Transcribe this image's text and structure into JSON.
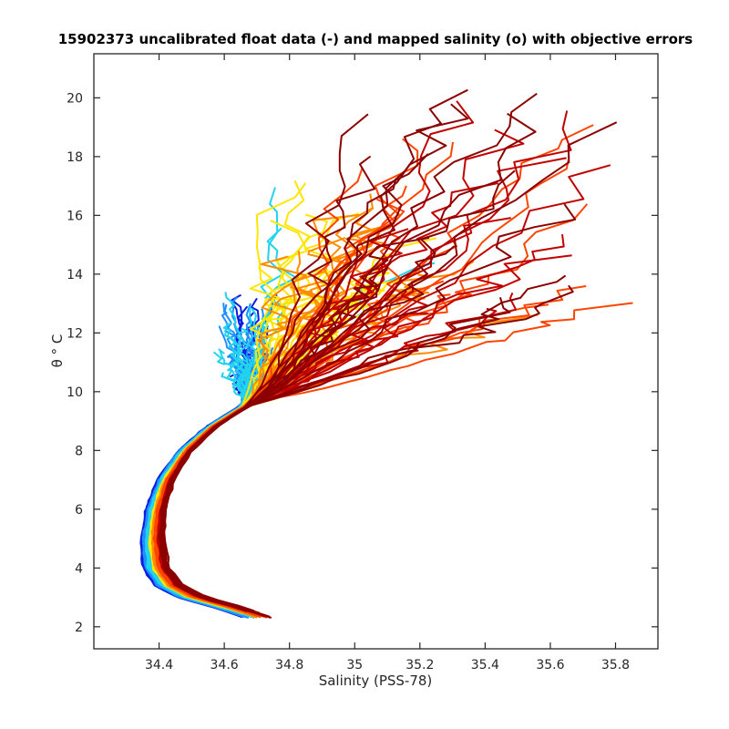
{
  "chart_data": {
    "type": "line",
    "title": "15902373 uncalibrated float data (-) and mapped salinity (o) with objective errors",
    "xlabel": "Salinity (PSS-78)",
    "ylabel": "θ ° C",
    "xlim": [
      34.2,
      35.93
    ],
    "ylim": [
      1.25,
      21.5
    ],
    "xticks": [
      34.4,
      34.6,
      34.8,
      35,
      35.2,
      35.4,
      35.6,
      35.8
    ],
    "xtick_labels": [
      "34.4",
      "34.6",
      "34.8",
      "35",
      "35.2",
      "35.4",
      "35.6",
      "35.8"
    ],
    "yticks": [
      2,
      4,
      6,
      8,
      10,
      12,
      14,
      16,
      18,
      20
    ],
    "ytick_labels": [
      "2",
      "4",
      "6",
      "8",
      "10",
      "12",
      "14",
      "16",
      "18",
      "20"
    ],
    "grid": false,
    "legend": "none",
    "colormap": [
      "#0a1ee0",
      "#1e90ff",
      "#22d3ee",
      "#ffe600",
      "#ff8c00",
      "#ff4500",
      "#c00000",
      "#8b0000"
    ],
    "deep_curve": {
      "description_free": true,
      "x": [
        34.71,
        34.6,
        34.5,
        34.43,
        34.39,
        34.38,
        34.39,
        34.42,
        34.48,
        34.56,
        34.66,
        34.76,
        34.88
      ],
      "y": [
        2.3,
        2.7,
        3.0,
        3.4,
        4.0,
        5.0,
        6.0,
        7.0,
        8.0,
        8.8,
        9.5,
        10.0,
        10.5
      ]
    },
    "upper_envelope": {
      "x_range": [
        34.55,
        35.83
      ],
      "y_range": [
        9.5,
        20.4
      ]
    }
  }
}
